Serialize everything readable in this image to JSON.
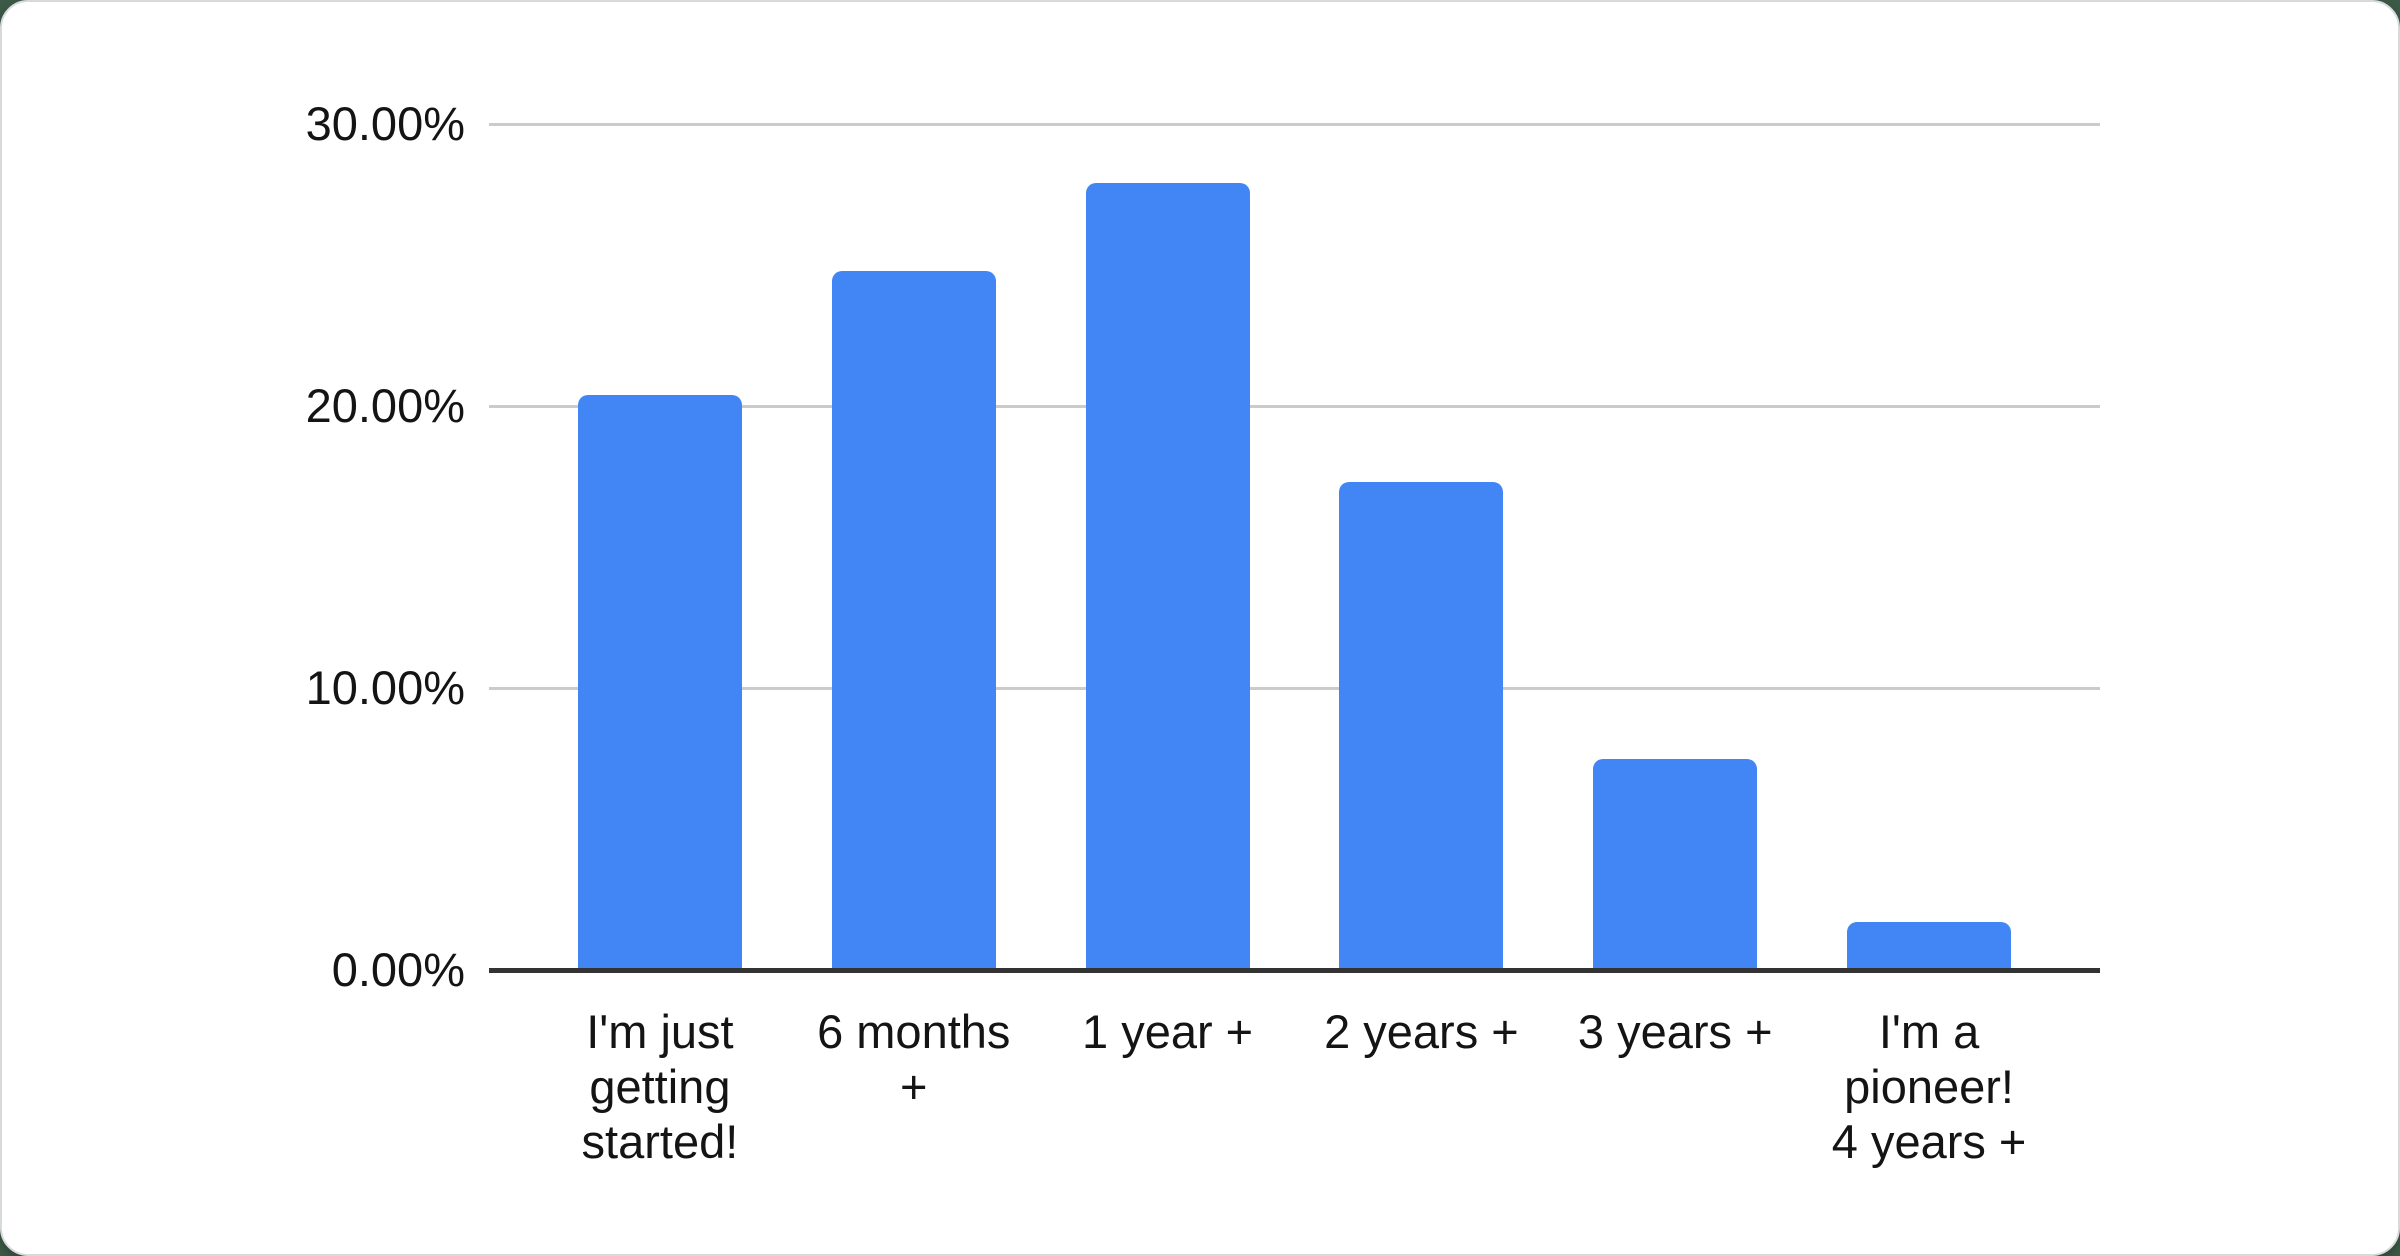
{
  "colors": {
    "page_background": "#3C5A47",
    "card_background": "#FFFFFF",
    "card_border": "#D7DADB"
  },
  "chart_data": {
    "type": "bar",
    "title": "",
    "xlabel": "",
    "ylabel": "",
    "categories": [
      "I'm just getting started!",
      "6 months +",
      "1 year +",
      "2 years +",
      "3 years +",
      "I'm a pioneer! 4 years +"
    ],
    "category_lines": [
      [
        "I'm just",
        "getting",
        "started!"
      ],
      [
        "6 months",
        "+"
      ],
      [
        "1 year +"
      ],
      [
        "2 years +"
      ],
      [
        "3 years +"
      ],
      [
        "I'm a",
        "pioneer!",
        "4 years +"
      ]
    ],
    "values": [
      20.4,
      24.8,
      27.9,
      17.3,
      7.5,
      1.7
    ],
    "unit": "%",
    "ylim": [
      0,
      30
    ],
    "yticks": [
      {
        "value": 0,
        "label": "0.00%"
      },
      {
        "value": 10,
        "label": "10.00%"
      },
      {
        "value": 20,
        "label": "20.00%"
      },
      {
        "value": 30,
        "label": "30.00%"
      }
    ],
    "grid": true,
    "legend": "none",
    "bar_color": "#4285F4",
    "gridline_color": "#CBCBCB",
    "axis_line_color": "#333333",
    "label_color": "#141414"
  }
}
